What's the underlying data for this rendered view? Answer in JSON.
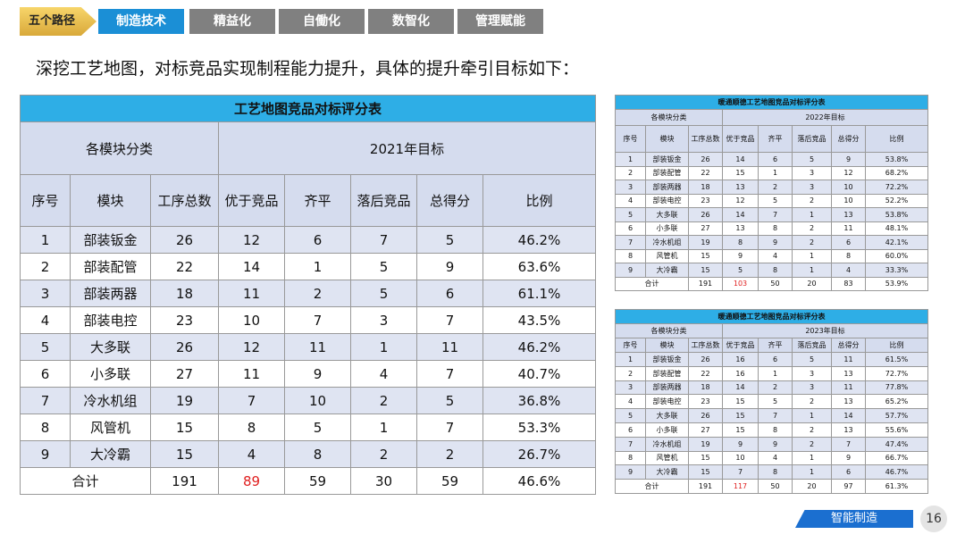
{
  "nav": {
    "label": "五个路径",
    "tabs": [
      "制造技术",
      "精益化",
      "自働化",
      "数智化",
      "管理赋能"
    ]
  },
  "subtitle": "深挖工艺地图，对标竞品实现制程能力提升，具体的提升牵引目标如下：",
  "tables": [
    {
      "title": "工艺地图竞品对标评分表",
      "group_headers": [
        "各模块分类",
        "2021年目标"
      ],
      "columns": [
        "序号",
        "模块",
        "工序总数",
        "优于竞品",
        "齐平",
        "落后竞品",
        "总得分",
        "比例"
      ],
      "rows": [
        [
          "1",
          "部装钣金",
          "26",
          "12",
          "6",
          "7",
          "5",
          "46.2%"
        ],
        [
          "2",
          "部装配管",
          "22",
          "14",
          "1",
          "5",
          "9",
          "63.6%"
        ],
        [
          "3",
          "部装两器",
          "18",
          "11",
          "2",
          "5",
          "6",
          "61.1%"
        ],
        [
          "4",
          "部装电控",
          "23",
          "10",
          "7",
          "3",
          "7",
          "43.5%"
        ],
        [
          "5",
          "大多联",
          "26",
          "12",
          "11",
          "1",
          "11",
          "46.2%"
        ],
        [
          "6",
          "小多联",
          "27",
          "11",
          "9",
          "4",
          "7",
          "40.7%"
        ],
        [
          "7",
          "冷水机组",
          "19",
          "7",
          "10",
          "2",
          "5",
          "36.8%"
        ],
        [
          "8",
          "风管机",
          "15",
          "8",
          "5",
          "1",
          "7",
          "53.3%"
        ],
        [
          "9",
          "大冷霸",
          "15",
          "4",
          "8",
          "2",
          "2",
          "26.7%"
        ]
      ],
      "total": [
        "合计",
        "191",
        "89",
        "59",
        "30",
        "59",
        "46.6%"
      ]
    },
    {
      "title": "暖通顺德工艺地图竞品对标评分表",
      "group_headers": [
        "各模块分类",
        "2022年目标"
      ],
      "columns": [
        "序号",
        "模块",
        "工序总数",
        "优于竞品",
        "齐平",
        "落后竞品",
        "总得分",
        "比例"
      ],
      "rows": [
        [
          "1",
          "部装钣金",
          "26",
          "14",
          "6",
          "5",
          "9",
          "53.8%"
        ],
        [
          "2",
          "部装配管",
          "22",
          "15",
          "1",
          "3",
          "12",
          "68.2%"
        ],
        [
          "3",
          "部装两器",
          "18",
          "13",
          "2",
          "3",
          "10",
          "72.2%"
        ],
        [
          "4",
          "部装电控",
          "23",
          "12",
          "5",
          "2",
          "10",
          "52.2%"
        ],
        [
          "5",
          "大多联",
          "26",
          "14",
          "7",
          "1",
          "13",
          "53.8%"
        ],
        [
          "6",
          "小多联",
          "27",
          "13",
          "8",
          "2",
          "11",
          "48.1%"
        ],
        [
          "7",
          "冷水机组",
          "19",
          "8",
          "9",
          "2",
          "6",
          "42.1%"
        ],
        [
          "8",
          "风管机",
          "15",
          "9",
          "4",
          "1",
          "8",
          "60.0%"
        ],
        [
          "9",
          "大冷霸",
          "15",
          "5",
          "8",
          "1",
          "4",
          "33.3%"
        ]
      ],
      "total": [
        "合计",
        "191",
        "103",
        "50",
        "20",
        "83",
        "53.9%"
      ]
    },
    {
      "title": "暖通顺德工艺地图竞品对标评分表",
      "group_headers": [
        "各模块分类",
        "2023年目标"
      ],
      "columns": [
        "序号",
        "模块",
        "工序总数",
        "优于竞品",
        "齐平",
        "落后竞品",
        "总得分",
        "比例"
      ],
      "rows": [
        [
          "1",
          "部装钣金",
          "26",
          "16",
          "6",
          "5",
          "11",
          "61.5%"
        ],
        [
          "2",
          "部装配管",
          "22",
          "16",
          "1",
          "3",
          "13",
          "72.7%"
        ],
        [
          "3",
          "部装两器",
          "18",
          "14",
          "2",
          "3",
          "11",
          "77.8%"
        ],
        [
          "4",
          "部装电控",
          "23",
          "15",
          "5",
          "2",
          "13",
          "65.2%"
        ],
        [
          "5",
          "大多联",
          "26",
          "15",
          "7",
          "1",
          "14",
          "57.7%"
        ],
        [
          "6",
          "小多联",
          "27",
          "15",
          "8",
          "2",
          "13",
          "55.6%"
        ],
        [
          "7",
          "冷水机组",
          "19",
          "9",
          "9",
          "2",
          "7",
          "47.4%"
        ],
        [
          "8",
          "风管机",
          "15",
          "10",
          "4",
          "1",
          "9",
          "66.7%"
        ],
        [
          "9",
          "大冷霸",
          "15",
          "7",
          "8",
          "1",
          "6",
          "46.7%"
        ]
      ],
      "total": [
        "合计",
        "191",
        "117",
        "50",
        "20",
        "97",
        "61.3%"
      ]
    }
  ],
  "footer": {
    "label": "智能制造",
    "page": "16"
  }
}
